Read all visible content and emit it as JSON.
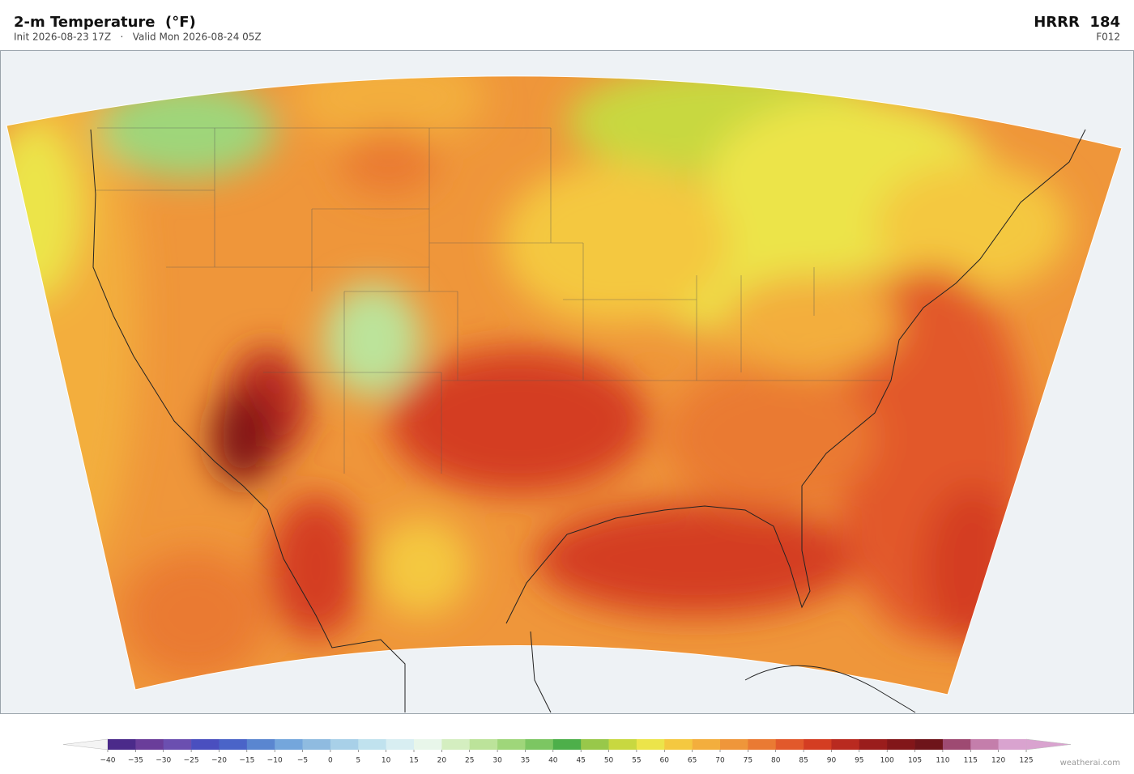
{
  "header": {
    "title": "2-m Temperature  (°F)",
    "subtitle": "Init 2026-08-23 17Z   ·   Valid Mon 2026-08-24 05Z",
    "model": "HRRR  184",
    "forecast_hour": "F012"
  },
  "colorbar": {
    "lim": [
      -40,
      125
    ],
    "ticks": [
      {
        "value": -40,
        "label": "−40"
      },
      {
        "value": -35,
        "label": "−35"
      },
      {
        "value": -30,
        "label": "−30"
      },
      {
        "value": -25,
        "label": "−25"
      },
      {
        "value": -20,
        "label": "−20"
      },
      {
        "value": -15,
        "label": "−15"
      },
      {
        "value": -10,
        "label": "−10"
      },
      {
        "value": -5,
        "label": "−5"
      },
      0,
      5,
      10,
      15,
      20,
      25,
      30,
      35,
      40,
      45,
      50,
      55,
      60,
      65,
      70,
      75,
      80,
      85,
      90,
      95,
      100,
      105,
      110,
      115,
      120,
      125
    ],
    "colors": [
      "#4b2a8a",
      "#6a3d9a",
      "#6b4fb0",
      "#4a4fbf",
      "#4a64c8",
      "#5a86d0",
      "#74a6dc",
      "#8fbbe0",
      "#a8d0e8",
      "#c0e2ee",
      "#d8eef2",
      "#e8f6ea",
      "#d4eec0",
      "#bce39a",
      "#9fd67a",
      "#7cc662",
      "#4daf4a",
      "#98c84a",
      "#c8d840",
      "#ece44a",
      "#f4c840",
      "#f3ae3d",
      "#ef963a",
      "#ea7a33",
      "#e2592b",
      "#d43d22",
      "#b92a20",
      "#9a1d1c",
      "#821619",
      "#6e141a",
      "#9e4a72",
      "#c47eab",
      "#d9a3cf"
    ],
    "under_color": "#f4f4f4",
    "over_color": "#d9a3cf"
  },
  "footer": {
    "credit": "weatherai.com"
  }
}
